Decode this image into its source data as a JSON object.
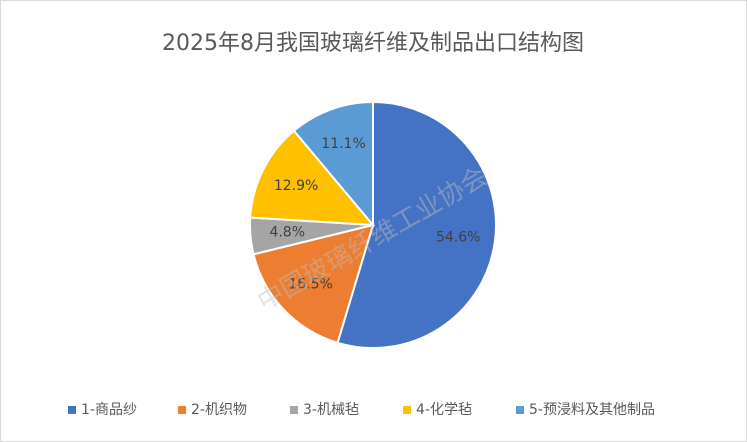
{
  "chart_data": {
    "type": "pie",
    "title": "2025年8月我国玻璃纤维及制品出口结构图",
    "watermark": "中国玻璃纤维工业协会",
    "categories": [
      "1-商品纱",
      "2-机织物",
      "3-机械毡",
      "4-化学毡",
      "5-预浸料及其他制品"
    ],
    "values": [
      54.6,
      16.5,
      4.8,
      12.9,
      11.1
    ],
    "value_labels": [
      "54.6%",
      "16.5%",
      "4.8%",
      "12.9%",
      "11.1%"
    ],
    "colors": [
      "#4472c4",
      "#ed7d31",
      "#a5a5a5",
      "#ffc000",
      "#5b9bd5"
    ],
    "legend": "bottom"
  }
}
